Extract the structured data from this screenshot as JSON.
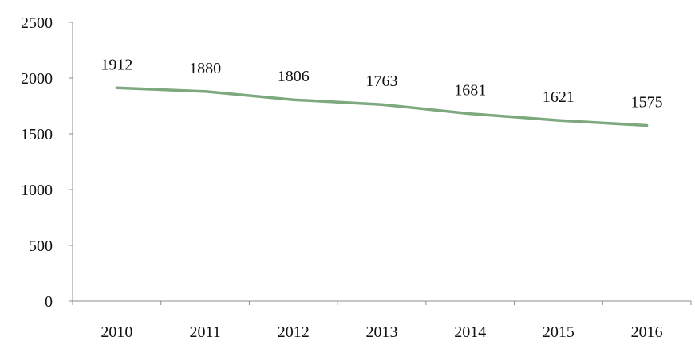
{
  "chart_data": {
    "type": "line",
    "title": "",
    "xlabel": "",
    "ylabel": "",
    "categories": [
      "2010",
      "2011",
      "2012",
      "2013",
      "2014",
      "2015",
      "2016"
    ],
    "series": [
      {
        "values": [
          1912,
          1880,
          1806,
          1763,
          1681,
          1621,
          1575
        ],
        "color": "#7ea87e"
      }
    ],
    "ylim": [
      0,
      2500
    ],
    "yticks": [
      0,
      500,
      1000,
      1500,
      2000,
      2500
    ],
    "grid": false,
    "legend": "none",
    "show_data_labels": true
  }
}
